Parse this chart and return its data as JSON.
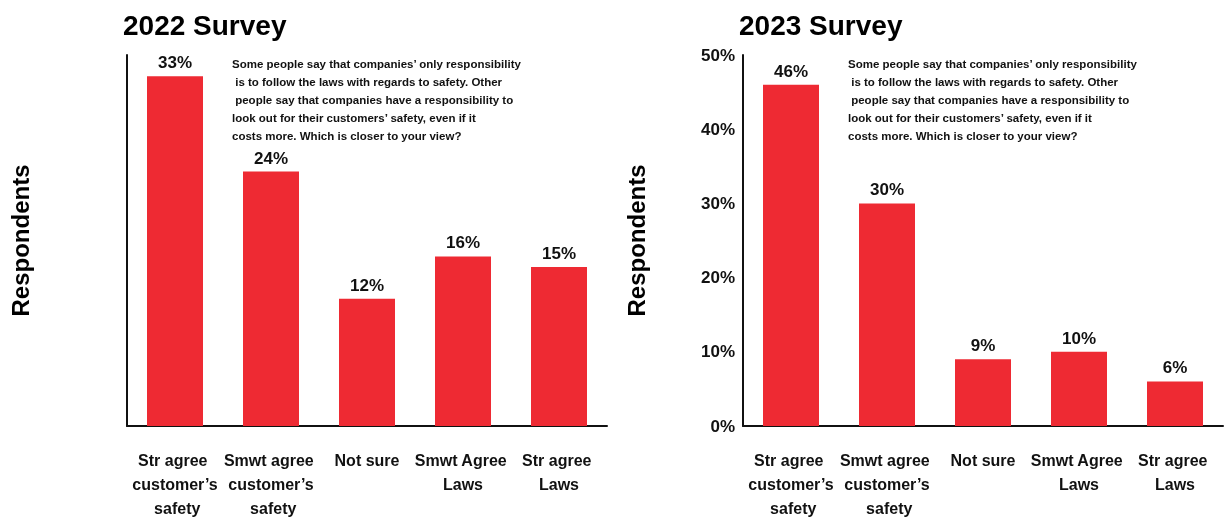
{
  "chart_data": [
    {
      "type": "bar",
      "title": "2022 Survey",
      "ylabel": "Respondents",
      "categories": [
        "Str agree customer’s safety",
        "Smwt agree customer’s safety",
        "Not sure",
        "Smwt Agree Laws",
        "Str agree Laws"
      ],
      "values": [
        33,
        24,
        12,
        16,
        15
      ],
      "value_labels": [
        "33%",
        "24%",
        "12%",
        "16%",
        "15%"
      ],
      "color": "#ee2a33",
      "tick_labels": "x",
      "grid": false,
      "annotations": [
        "Some people say that companies’ only responsibility is to follow the laws with regards to safety. Other people say that companies have a responsibility to look out for their customers’ safety, even if it costs more. Which is closer to your view?"
      ]
    },
    {
      "type": "bar",
      "title": "2023 Survey",
      "ylabel": "Respondents",
      "categories": [
        "Str agree customer’s safety",
        "Smwt agree customer’s safety",
        "Not sure",
        "Smwt Agree Laws",
        "Str agree Laws"
      ],
      "values": [
        46,
        30,
        9,
        10,
        6
      ],
      "value_labels": [
        "46%",
        "30%",
        "9%",
        "10%",
        "6%"
      ],
      "color": "#ee2a33",
      "ylim": [
        0,
        50
      ],
      "yticks": [
        {
          "value": 0,
          "label": "0%"
        },
        {
          "value": 10,
          "label": "10%"
        },
        {
          "value": 20,
          "label": "20%"
        },
        {
          "value": 30,
          "label": "30%"
        },
        {
          "value": 40,
          "label": "40%"
        },
        {
          "value": 50,
          "label": "50%"
        }
      ],
      "grid": false,
      "annotations": [
        "Some people say that companies’ only responsibility is to follow the laws with regards to safety. Other people say that companies have a responsibility to look out for their customers’ safety, even if it costs more. Which is closer to your view?"
      ]
    }
  ]
}
